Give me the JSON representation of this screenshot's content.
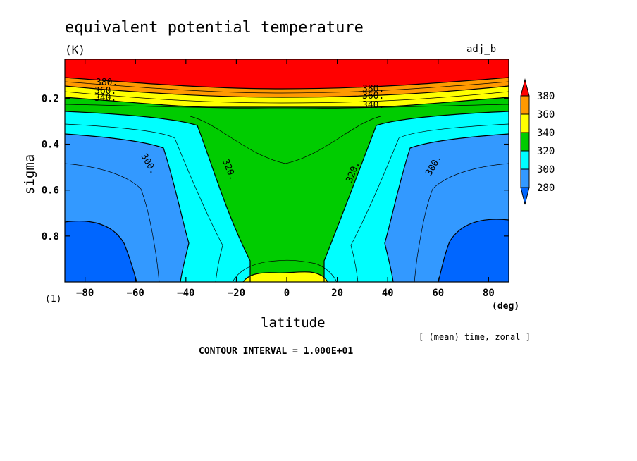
{
  "header": {
    "title": "equivalent potential temperature",
    "units": "(K)",
    "run_label": "adj_b"
  },
  "footer": {
    "page_number": "(1)",
    "averaging_note": "[ (mean) time, zonal ]",
    "contour_interval": "CONTOUR INTERVAL = 1.000E+01"
  },
  "chart_data": {
    "type": "heatmap",
    "variable": "equivalent potential temperature",
    "units": "K",
    "xlabel": "latitude",
    "xunit": "(deg)",
    "ylabel": "sigma",
    "xlim": [
      -88,
      88
    ],
    "ylim": [
      1.0,
      0.03
    ],
    "y_reversed": true,
    "x_ticks": [
      -80,
      -60,
      -40,
      -20,
      0,
      20,
      40,
      60,
      80
    ],
    "x_tick_labels": [
      "−80",
      "−60",
      "−40",
      "−20",
      "0",
      "20",
      "40",
      "60",
      "80"
    ],
    "y_ticks": [
      0.2,
      0.4,
      0.6,
      0.8
    ],
    "y_tick_labels": [
      "0.2",
      "0.4",
      "0.6",
      "0.8"
    ],
    "contour_interval": 10,
    "contour_levels": [
      280,
      290,
      300,
      310,
      320,
      330,
      340,
      350,
      360,
      370,
      380
    ],
    "contour_labels": [
      {
        "text": "380.",
        "lat": -72,
        "sigma": 0.11
      },
      {
        "text": "360.",
        "lat": -72,
        "sigma": 0.135
      },
      {
        "text": "340.",
        "lat": -70,
        "sigma": 0.165
      },
      {
        "text": "380.",
        "lat": 35,
        "sigma": 0.125
      },
      {
        "text": "360.",
        "lat": 35,
        "sigma": 0.14
      },
      {
        "text": "340.",
        "lat": 35,
        "sigma": 0.195
      },
      {
        "text": "300.",
        "lat": -57,
        "sigma": 0.47
      },
      {
        "text": "320.",
        "lat": -26,
        "sigma": 0.5
      },
      {
        "text": "320.",
        "lat": 25,
        "sigma": 0.5
      },
      {
        "text": "300.",
        "lat": 57,
        "sigma": 0.47
      }
    ],
    "colorbar": {
      "labels": [
        "380",
        "360",
        "340",
        "320",
        "300",
        "280"
      ],
      "colors": [
        "#ff0000",
        "#ff9900",
        "#ffff00",
        "#00cc00",
        "#00ffff",
        "#3399ff",
        "#0066ff"
      ],
      "color_names": [
        "above 380",
        "360-380",
        "340-360",
        "320-340",
        "300-320",
        "280-300",
        "below 280"
      ]
    }
  }
}
